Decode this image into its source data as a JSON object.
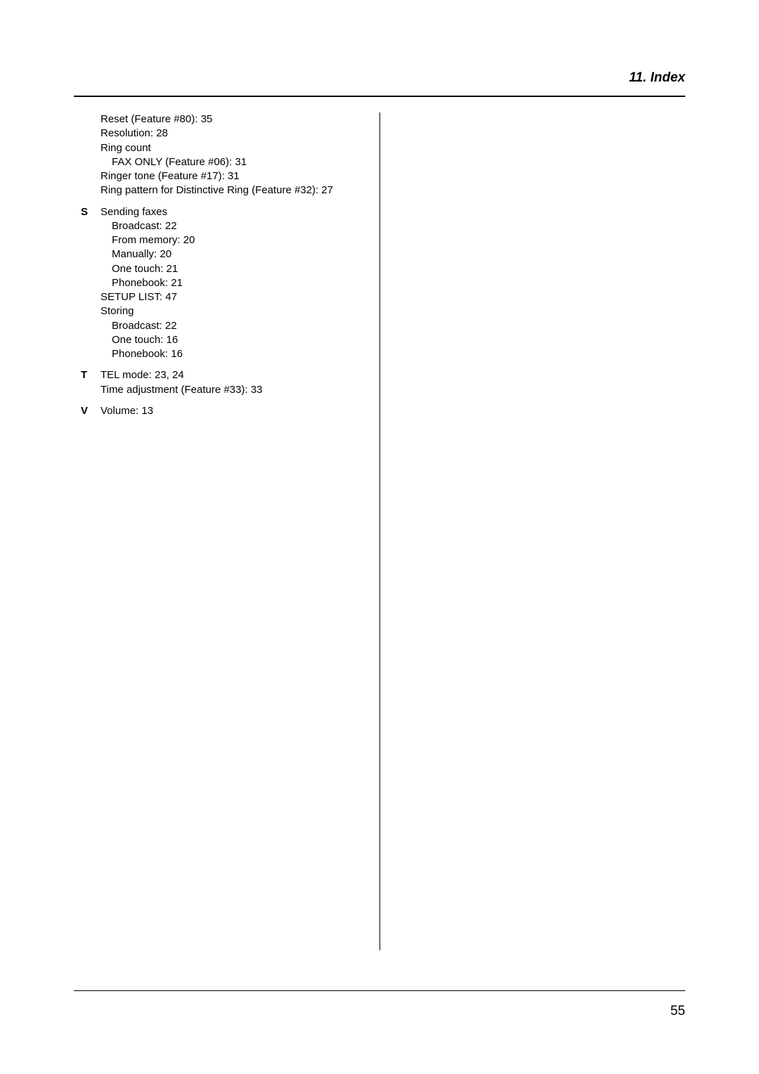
{
  "header": {
    "title": "11. Index"
  },
  "pageNumber": "55",
  "sections": {
    "r": {
      "items": [
        {
          "text": "Reset (Feature #80): 35"
        },
        {
          "text": "Resolution: 28"
        },
        {
          "text": "Ring count"
        },
        {
          "text": "FAX ONLY (Feature #06): 31",
          "indent": 1
        },
        {
          "text": "Ringer tone (Feature #17): 31"
        },
        {
          "text": "Ring pattern for Distinctive Ring (Feature #32): 27"
        }
      ]
    },
    "s": {
      "letter": "S",
      "items": [
        {
          "text": "Sending faxes"
        },
        {
          "text": "Broadcast: 22",
          "indent": 1
        },
        {
          "text": "From memory: 20",
          "indent": 1
        },
        {
          "text": "Manually: 20",
          "indent": 1
        },
        {
          "text": "One touch: 21",
          "indent": 1
        },
        {
          "text": "Phonebook: 21",
          "indent": 1
        },
        {
          "text": "SETUP LIST: 47"
        },
        {
          "text": "Storing"
        },
        {
          "text": "Broadcast: 22",
          "indent": 1
        },
        {
          "text": "One touch: 16",
          "indent": 1
        },
        {
          "text": "Phonebook: 16",
          "indent": 1
        }
      ]
    },
    "t": {
      "letter": "T",
      "items": [
        {
          "text": "TEL mode: 23, 24"
        },
        {
          "text": "Time adjustment (Feature #33): 33"
        }
      ]
    },
    "v": {
      "letter": "V",
      "items": [
        {
          "text": "Volume: 13"
        }
      ]
    }
  }
}
